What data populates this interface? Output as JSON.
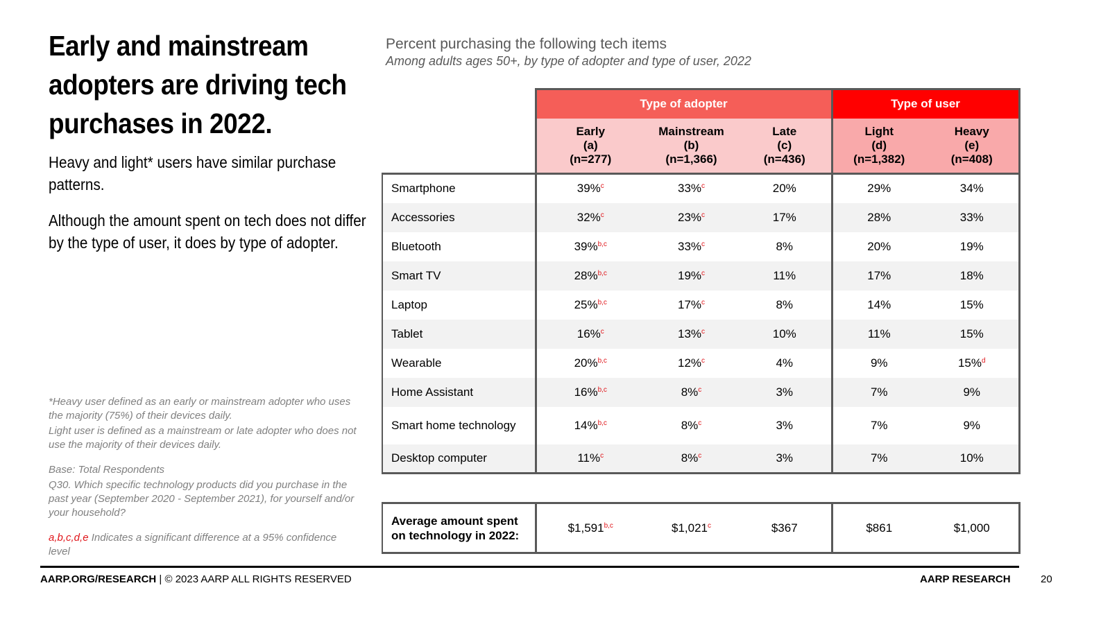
{
  "left": {
    "title": "Early and mainstream adopters are driving tech purchases in 2022.",
    "para1": "Heavy and light* users have similar purchase patterns.",
    "para2": "Although the amount spent on tech does not differ by the type of user, it does by type of adopter.",
    "note1": "*Heavy user defined as an early or mainstream adopter who uses the majority (75%) of their devices daily.",
    "note2": "Light user is defined as a mainstream or late adopter who does not use the majority of their devices daily.",
    "base": "Base: Total Respondents",
    "question": "Q30. Which specific technology products did you purchase in the past year (September 2020 - September 2021), for yourself and/or your household?",
    "sig_letters": "a,b,c,d,e",
    "sig_text": " Indicates a significant difference at a 95% confidence level"
  },
  "chart": {
    "title": "Percent purchasing the following tech items",
    "subtitle": "Among adults ages 50+, by type of adopter and type of user, 2022"
  },
  "table": {
    "groups": [
      "Type of adopter",
      "Type of user"
    ],
    "columns": [
      {
        "name": "Early",
        "code": "(a)",
        "n": "(n=277)"
      },
      {
        "name": "Mainstream",
        "code": "(b)",
        "n": "(n=1,366)"
      },
      {
        "name": "Late",
        "code": "(c)",
        "n": "(n=436)"
      },
      {
        "name": "Light",
        "code": "(d)",
        "n": "(n=1,382)"
      },
      {
        "name": "Heavy",
        "code": "(e)",
        "n": "(n=408)"
      }
    ],
    "rows": [
      {
        "label": "Smartphone",
        "cells": [
          [
            "39%",
            "c"
          ],
          [
            "33%",
            "c"
          ],
          [
            "20%",
            ""
          ],
          [
            "29%",
            ""
          ],
          [
            "34%",
            ""
          ]
        ]
      },
      {
        "label": "Accessories",
        "cells": [
          [
            "32%",
            "c"
          ],
          [
            "23%",
            "c"
          ],
          [
            "17%",
            ""
          ],
          [
            "28%",
            ""
          ],
          [
            "33%",
            ""
          ]
        ]
      },
      {
        "label": "Bluetooth",
        "cells": [
          [
            "39%",
            "b,c"
          ],
          [
            "33%",
            "c"
          ],
          [
            "8%",
            ""
          ],
          [
            "20%",
            ""
          ],
          [
            "19%",
            ""
          ]
        ]
      },
      {
        "label": "Smart TV",
        "cells": [
          [
            "28%",
            "b,c"
          ],
          [
            "19%",
            "c"
          ],
          [
            "11%",
            ""
          ],
          [
            "17%",
            ""
          ],
          [
            "18%",
            ""
          ]
        ]
      },
      {
        "label": "Laptop",
        "cells": [
          [
            "25%",
            "b,c"
          ],
          [
            "17%",
            "c"
          ],
          [
            "8%",
            ""
          ],
          [
            "14%",
            ""
          ],
          [
            "15%",
            ""
          ]
        ]
      },
      {
        "label": "Tablet",
        "cells": [
          [
            "16%",
            "c"
          ],
          [
            "13%",
            "c"
          ],
          [
            "10%",
            ""
          ],
          [
            "11%",
            ""
          ],
          [
            "15%",
            ""
          ]
        ]
      },
      {
        "label": "Wearable",
        "cells": [
          [
            "20%",
            "b,c"
          ],
          [
            "12%",
            "c"
          ],
          [
            "4%",
            ""
          ],
          [
            "9%",
            ""
          ],
          [
            "15%",
            "d"
          ]
        ]
      },
      {
        "label": "Home Assistant",
        "cells": [
          [
            "16%",
            "b,c"
          ],
          [
            "8%",
            "c"
          ],
          [
            "3%",
            ""
          ],
          [
            "7%",
            ""
          ],
          [
            "9%",
            ""
          ]
        ]
      },
      {
        "label": "Smart home technology",
        "cells": [
          [
            "14%",
            "b,c"
          ],
          [
            "8%",
            "c"
          ],
          [
            "3%",
            ""
          ],
          [
            "7%",
            ""
          ],
          [
            "9%",
            ""
          ]
        ]
      },
      {
        "label": "Desktop computer",
        "cells": [
          [
            "11%",
            "c"
          ],
          [
            "8%",
            "c"
          ],
          [
            "3%",
            ""
          ],
          [
            "7%",
            ""
          ],
          [
            "10%",
            ""
          ]
        ]
      }
    ],
    "avg": {
      "label": "Average amount spent on technology in 2022:",
      "cells": [
        [
          "$1,591",
          "b,c"
        ],
        [
          "$1,021",
          "c"
        ],
        [
          "$367",
          ""
        ],
        [
          "$861",
          ""
        ],
        [
          "$1,000",
          ""
        ]
      ]
    }
  },
  "footer": {
    "left_bold": "AARP.ORG/RESEARCH",
    "left_rest": " | © 2023 AARP ALL RIGHTS RESERVED",
    "right": "AARP RESEARCH",
    "page": "20"
  }
}
